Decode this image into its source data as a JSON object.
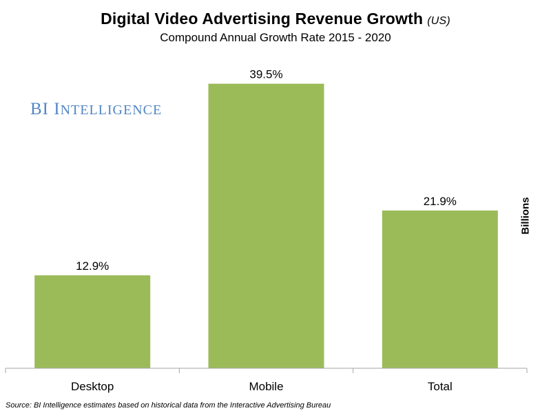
{
  "header": {
    "title": "Digital Video Advertising Revenue Growth",
    "title_qualifier": "(US)",
    "subtitle": "Compound Annual Growth Rate 2015 - 2020"
  },
  "watermark": {
    "first": "BI",
    "second": "Intelligence"
  },
  "footer": {
    "source": "Source: BI Intelligence estimates based on historical data from the Interactive Advertising Bureau"
  },
  "colors": {
    "bar": "#9bbb59",
    "axis": "#a6a6a6",
    "watermark": "#4f86c6"
  },
  "chart_data": {
    "type": "bar",
    "title": "Digital Video Advertising Revenue Growth (US)",
    "subtitle": "Compound Annual Growth Rate 2015 - 2020",
    "categories": [
      "Desktop",
      "Mobile",
      "Total"
    ],
    "values": [
      12.9,
      39.5,
      21.9
    ],
    "value_labels": [
      "12.9%",
      "39.5%",
      "21.9%"
    ],
    "xlabel": "",
    "ylabel": "Billions",
    "ylim": [
      0,
      43
    ],
    "grid": false,
    "legend": "none"
  }
}
